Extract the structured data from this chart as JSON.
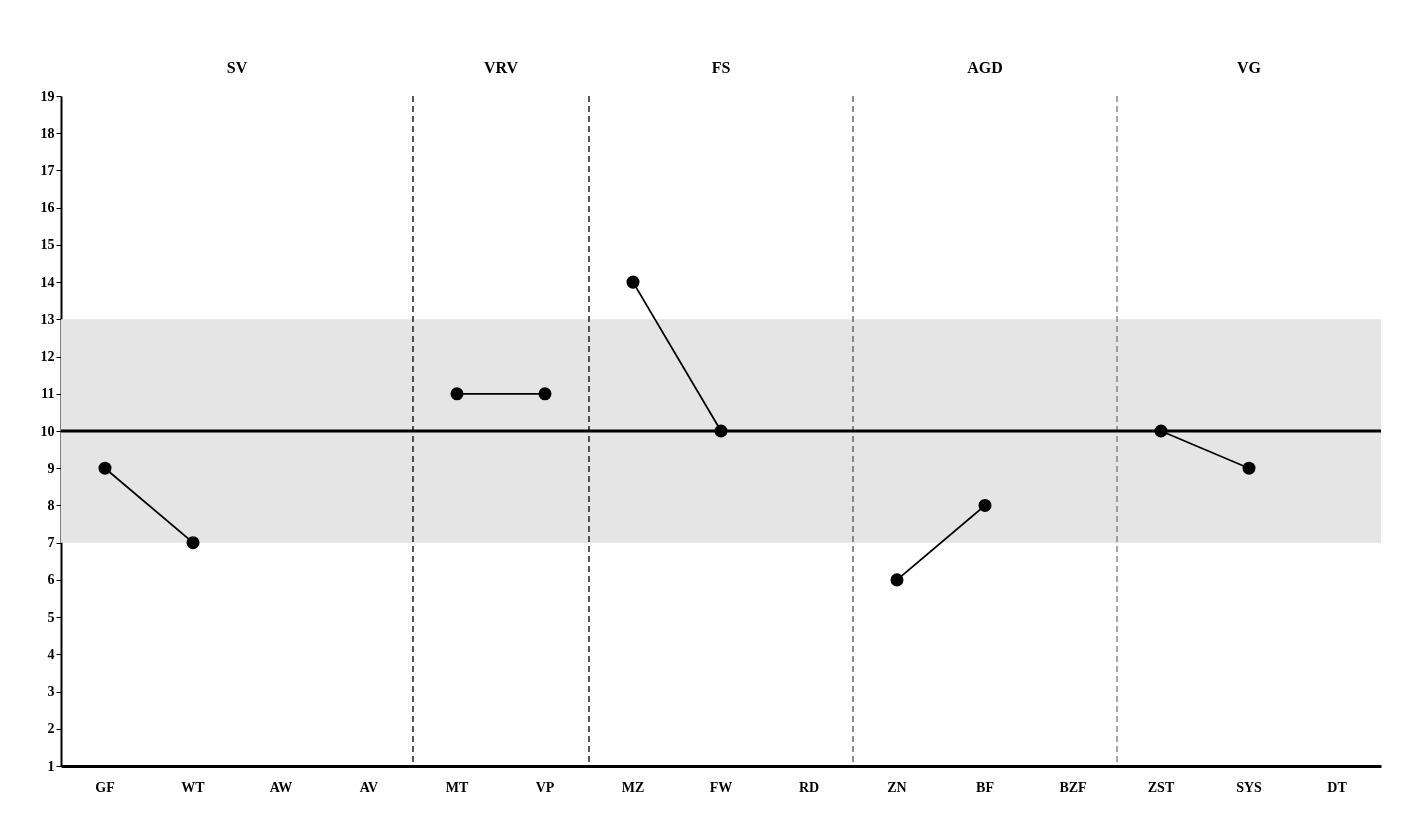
{
  "chart_data": {
    "type": "line",
    "categories": [
      "GF",
      "WT",
      "AW",
      "AV",
      "MT",
      "VP",
      "MZ",
      "FW",
      "RD",
      "ZN",
      "BF",
      "BZF",
      "ZST",
      "SYS",
      "DT"
    ],
    "series": [
      {
        "color": "#000000",
        "values": [
          9,
          7,
          null,
          null,
          null,
          null,
          null,
          null,
          null,
          null,
          null,
          null,
          null,
          null,
          null
        ]
      },
      {
        "color": "#000000",
        "values": [
          null,
          null,
          null,
          null,
          11,
          11,
          null,
          null,
          null,
          null,
          null,
          null,
          null,
          null,
          null
        ]
      },
      {
        "color": "#000000",
        "values": [
          null,
          null,
          null,
          null,
          null,
          null,
          14,
          10,
          null,
          null,
          null,
          null,
          null,
          null,
          null
        ]
      },
      {
        "color": "#000000",
        "values": [
          null,
          null,
          null,
          null,
          null,
          null,
          null,
          null,
          null,
          6,
          8,
          null,
          null,
          null,
          null
        ]
      },
      {
        "color": "#000000",
        "values": [
          null,
          null,
          null,
          null,
          null,
          null,
          null,
          null,
          null,
          null,
          null,
          null,
          10,
          9,
          null
        ]
      }
    ],
    "ylim": [
      1,
      19
    ],
    "yticks": [
      1,
      2,
      3,
      4,
      5,
      6,
      7,
      8,
      9,
      10,
      11,
      12,
      13,
      14,
      15,
      16,
      17,
      18,
      19
    ],
    "bands": [
      {
        "axis": "y",
        "from": 7,
        "to": 13,
        "color": "#e5e5e5"
      }
    ],
    "ref_lines": [
      {
        "axis": "y",
        "value": 10,
        "color": "#000000",
        "line_style": "solid"
      },
      {
        "axis": "x",
        "value": "MT",
        "color": "#000000",
        "line_style": "dashed"
      },
      {
        "axis": "x",
        "value": "MZ",
        "color": "#000000",
        "line_style": "dashed"
      },
      {
        "axis": "x",
        "value": "ZN",
        "color": "#555555",
        "line_style": "dashed"
      },
      {
        "axis": "x",
        "value": "ZST",
        "color": "#777777",
        "line_style": "dashed"
      }
    ],
    "annotations": [
      "SV",
      "VRV",
      "FS",
      "AGD",
      "VG"
    ],
    "marker": "circle",
    "line_style": "solid",
    "grid": false
  }
}
